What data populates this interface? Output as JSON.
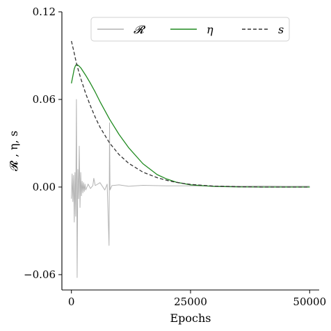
{
  "chart_data": {
    "type": "line",
    "xlabel": "Epochs",
    "ylabel": "𝓡 , η, s",
    "xlim": [
      -2000,
      52000
    ],
    "ylim": [
      -0.0705,
      0.12
    ],
    "xticks": [
      0,
      25000,
      50000
    ],
    "xtick_labels": [
      "0",
      "25000",
      "50000"
    ],
    "yticks": [
      -0.06,
      0.0,
      0.06,
      0.12
    ],
    "ytick_labels": [
      "−0.06",
      "0.00",
      "0.06",
      "0.12"
    ],
    "grid": false,
    "legend_position": "top-center",
    "series": [
      {
        "name": "𝓡",
        "color": "#b3b3b3",
        "style": "solid",
        "x": [
          0,
          150,
          300,
          450,
          600,
          750,
          900,
          1050,
          1200,
          1350,
          1500,
          1650,
          1800,
          1950,
          2100,
          2250,
          2400,
          2550,
          2700,
          2850,
          3000,
          3500,
          4000,
          4500,
          4700,
          5000,
          6000,
          7000,
          7500,
          7900,
          8000,
          8100,
          8500,
          10000,
          12000,
          15000,
          20000,
          25000,
          30000,
          35000,
          40000,
          45000,
          50000
        ],
        "y": [
          -0.008,
          0.009,
          -0.01,
          0.008,
          -0.024,
          0.01,
          -0.02,
          0.06,
          -0.062,
          0.012,
          -0.008,
          0.028,
          -0.014,
          0.01,
          -0.006,
          0.004,
          -0.004,
          0.003,
          -0.003,
          0.002,
          -0.002,
          0.002,
          -0.001,
          0.001,
          0.006,
          0.001,
          0.003,
          -0.002,
          0.002,
          -0.04,
          0.044,
          -0.002,
          0.001,
          0.0015,
          0.0005,
          0.0012,
          0.0008,
          0.0008,
          0.0007,
          0.0006,
          0.0007,
          0.0005,
          0.0006
        ]
      },
      {
        "name": "η",
        "color": "#1f8a1f",
        "style": "solid",
        "x": [
          0,
          300,
          600,
          900,
          1200,
          1500,
          2000,
          2500,
          3000,
          4000,
          5000,
          6000,
          8000,
          10000,
          12000,
          15000,
          18000,
          20000,
          22000,
          25000,
          30000,
          35000,
          40000,
          45000,
          50000
        ],
        "y": [
          0.071,
          0.076,
          0.081,
          0.0835,
          0.0838,
          0.0832,
          0.0815,
          0.079,
          0.0765,
          0.071,
          0.065,
          0.0585,
          0.0465,
          0.036,
          0.027,
          0.016,
          0.0085,
          0.0055,
          0.0033,
          0.0015,
          0.0004,
          0.0001,
          0.0,
          0.0,
          0.0
        ]
      },
      {
        "name": "s",
        "color": "#333333",
        "style": "dashed",
        "x": [
          0,
          500,
          1000,
          1500,
          2000,
          3000,
          4000,
          5000,
          6000,
          8000,
          10000,
          12000,
          15000,
          18000,
          20000,
          22000,
          25000,
          30000,
          35000,
          40000,
          45000,
          50000
        ],
        "y": [
          0.1,
          0.093,
          0.0855,
          0.0795,
          0.074,
          0.064,
          0.0555,
          0.0478,
          0.041,
          0.0302,
          0.0222,
          0.0163,
          0.0102,
          0.0064,
          0.0046,
          0.0032,
          0.0018,
          0.0006,
          0.0002,
          0.0,
          0.0,
          0.0
        ]
      }
    ]
  }
}
